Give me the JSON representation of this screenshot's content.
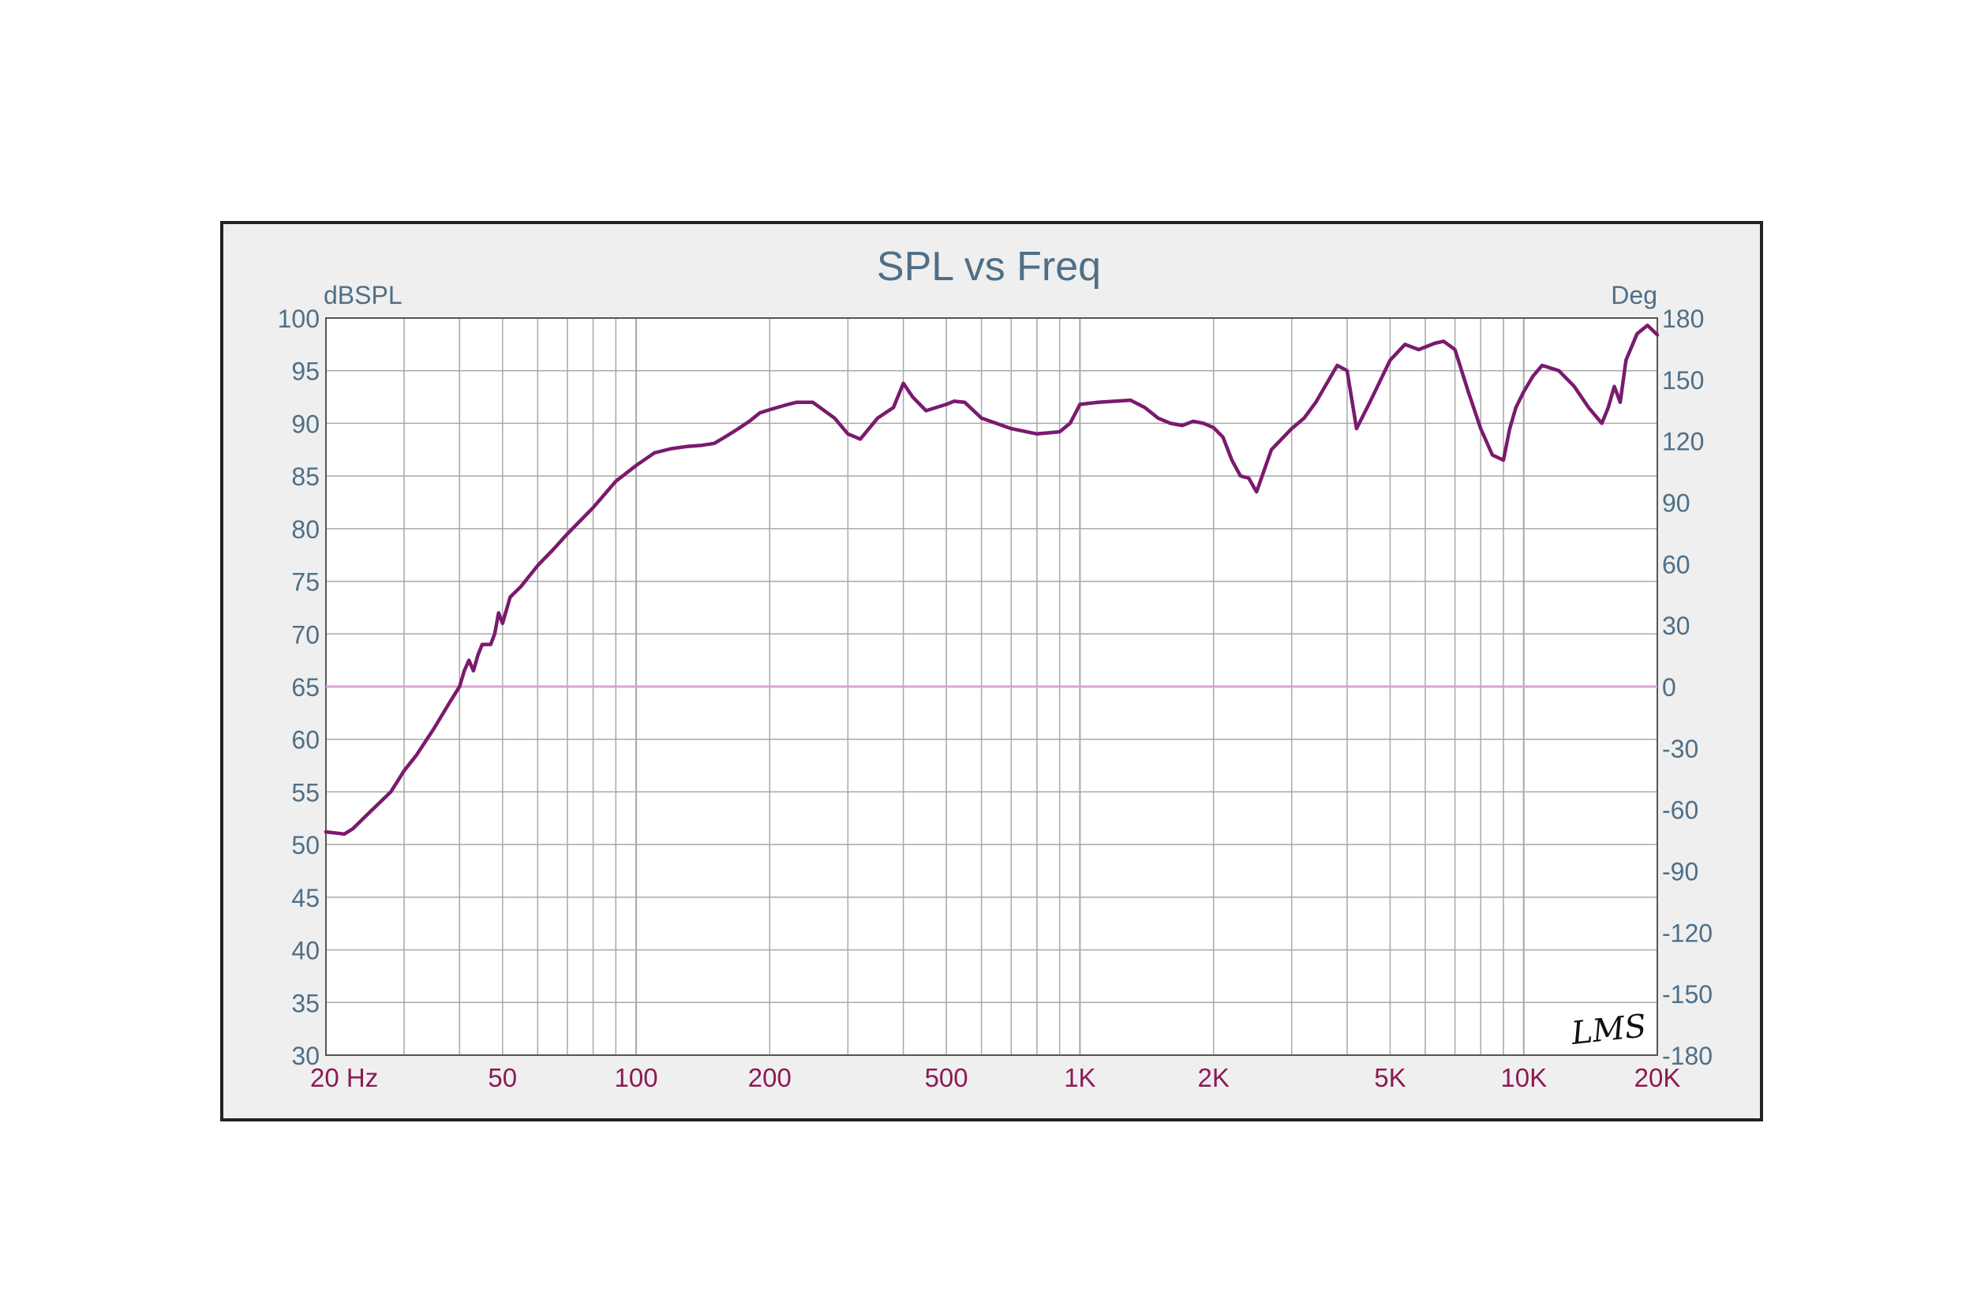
{
  "chart_data": {
    "type": "line",
    "title": "SPL vs Freq",
    "y_left_unit": "dBSPL",
    "y_right_unit": "Deg",
    "x_scale": "log",
    "xlim": [
      20,
      20000
    ],
    "ylim": [
      30,
      100
    ],
    "y_right_lim": [
      -180,
      180
    ],
    "grid": true,
    "x_tick_values": [
      20,
      50,
      100,
      200,
      500,
      1000,
      2000,
      5000,
      10000,
      20000
    ],
    "x_tick_labels": [
      "20  Hz",
      "50",
      "100",
      "200",
      "500",
      "1K",
      "2K",
      "5K",
      "10K",
      "20K"
    ],
    "y_left_ticks": [
      "30",
      "35",
      "40",
      "45",
      "50",
      "55",
      "60",
      "65",
      "70",
      "75",
      "80",
      "85",
      "90",
      "95",
      "100"
    ],
    "y_right_ticks": [
      "-180",
      "-150",
      "-120",
      "-90",
      "-60",
      "-30",
      "0",
      "30",
      "60",
      "90",
      "120",
      "150",
      "180"
    ],
    "logo": "LMS",
    "colors": {
      "spl_line": "#7a1a6e",
      "phase_line": "#d9a3d6",
      "grid": "#a8a8a8",
      "plot_background": "#ffffff",
      "frame_background": "#efefef"
    },
    "series": [
      {
        "id": "spl",
        "x": [
          20,
          22,
          23,
          25,
          28,
          30,
          32,
          35,
          38,
          40,
          41,
          42,
          43,
          44,
          45,
          47,
          48,
          49,
          50,
          52,
          55,
          60,
          65,
          70,
          80,
          90,
          100,
          110,
          120,
          130,
          140,
          150,
          160,
          170,
          180,
          190,
          200,
          220,
          230,
          250,
          280,
          300,
          320,
          350,
          380,
          400,
          420,
          450,
          500,
          520,
          550,
          600,
          700,
          800,
          900,
          950,
          1000,
          1100,
          1200,
          1300,
          1400,
          1500,
          1600,
          1700,
          1800,
          1900,
          2000,
          2100,
          2200,
          2300,
          2400,
          2500,
          2700,
          3000,
          3200,
          3400,
          3600,
          3800,
          4000,
          4200,
          4500,
          5000,
          5400,
          5800,
          6300,
          6600,
          7000,
          7500,
          8000,
          8500,
          9000,
          9300,
          9600,
          10000,
          10500,
          11000,
          12000,
          13000,
          14000,
          15000,
          15500,
          16000,
          16500,
          17000,
          18000,
          19000,
          20000
        ],
        "y": [
          51.2,
          51,
          51.5,
          53,
          55,
          57,
          58.5,
          61,
          63.5,
          65,
          66.5,
          67.5,
          66.5,
          68,
          69,
          69,
          70,
          72,
          71,
          73.5,
          74.5,
          76.5,
          78,
          79.5,
          82,
          84.5,
          86,
          87.2,
          87.6,
          87.8,
          87.9,
          88.1,
          88.8,
          89.5,
          90.2,
          91,
          91.3,
          91.8,
          92,
          92,
          90.5,
          89,
          88.5,
          90.5,
          91.5,
          93.8,
          92.5,
          91.2,
          91.8,
          92.1,
          92,
          90.5,
          89.5,
          89,
          89.2,
          90,
          91.8,
          92,
          92.1,
          92.2,
          91.5,
          90.5,
          90,
          89.8,
          90.2,
          90,
          89.6,
          88.7,
          86.5,
          85,
          84.8,
          83.5,
          87.5,
          89.5,
          90.5,
          92,
          93.8,
          95.5,
          95,
          89.5,
          92,
          96,
          97.5,
          97,
          97.6,
          97.8,
          97,
          93,
          89.5,
          87,
          86.5,
          89.5,
          91.5,
          93,
          94.5,
          95.5,
          95,
          93.5,
          91.5,
          90,
          91.5,
          93.5,
          92,
          96,
          98.5,
          99.3,
          98.4
        ]
      },
      {
        "id": "phase",
        "x": [
          20,
          20000
        ],
        "y": [
          65,
          65
        ]
      }
    ]
  }
}
